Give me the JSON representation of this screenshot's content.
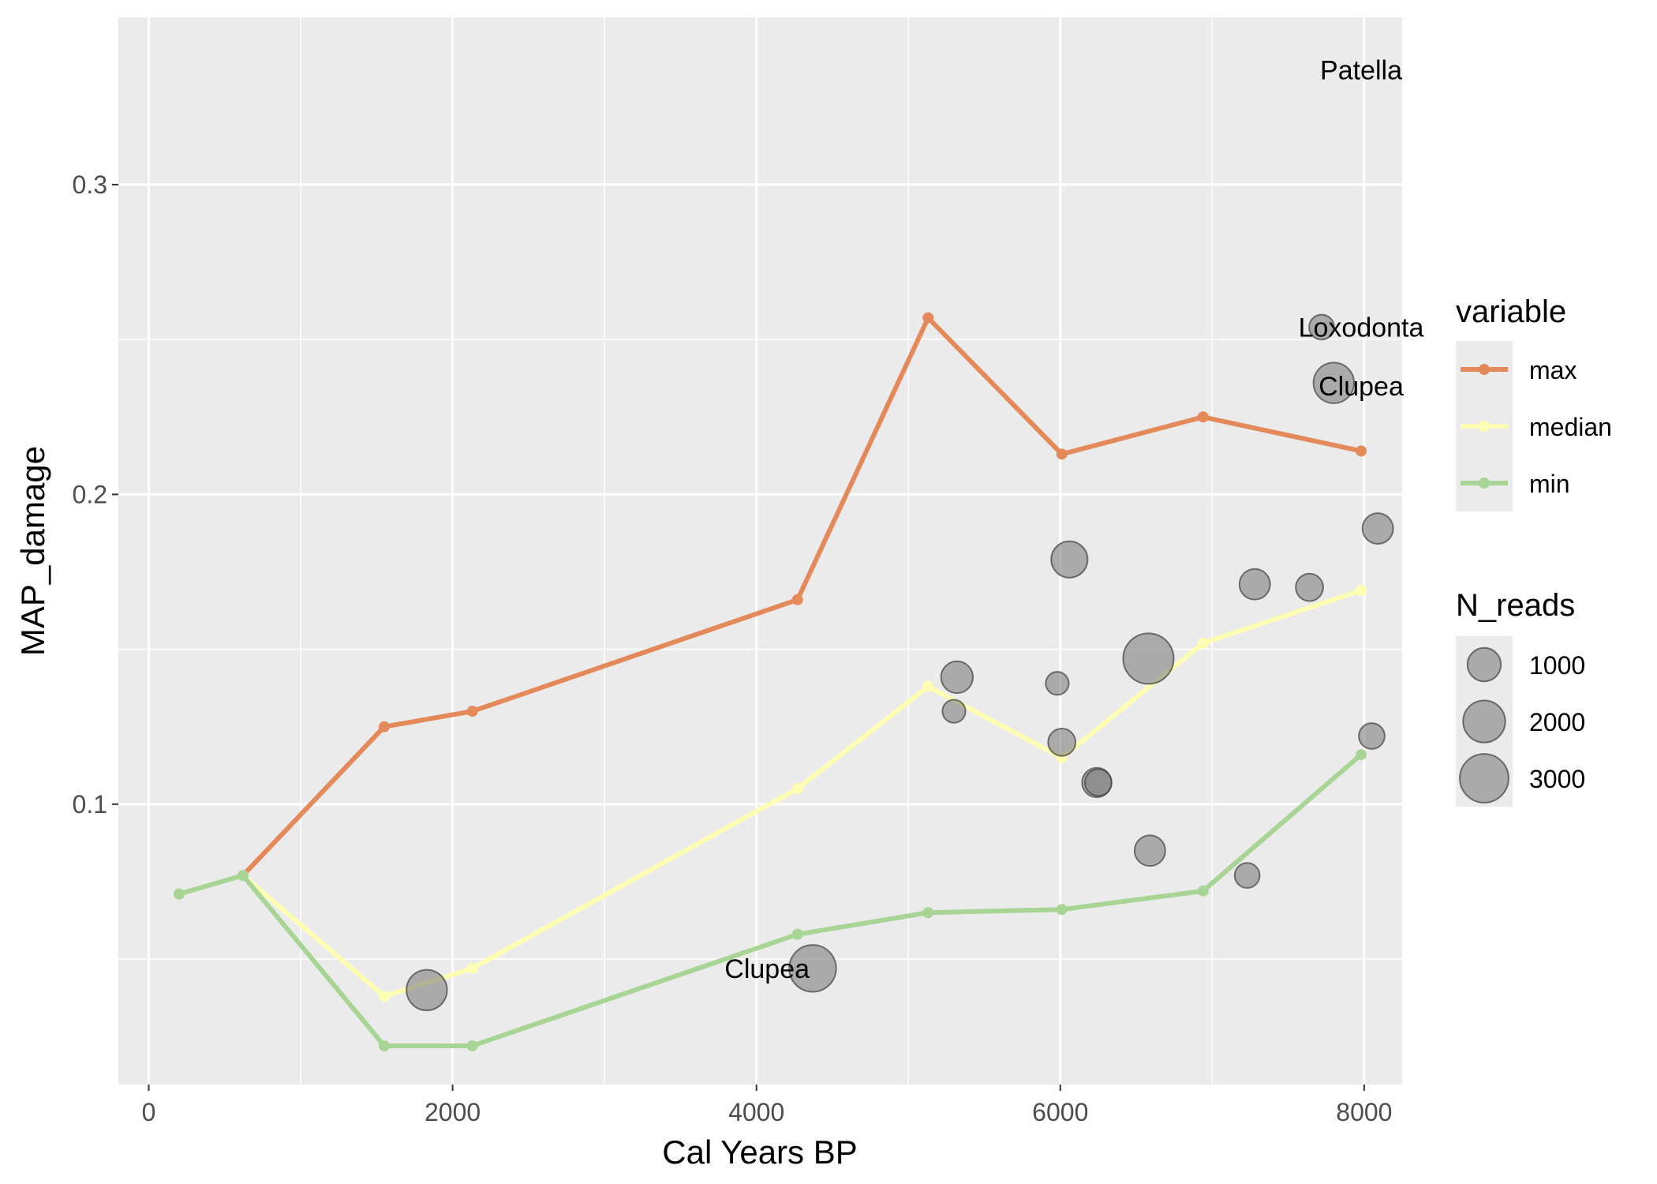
{
  "chart_data": {
    "type": "line",
    "xlabel": "Cal Years BP",
    "ylabel": "MAP_damage",
    "xlim": [
      -200,
      8250
    ],
    "ylim": [
      0.0095,
      0.354
    ],
    "x_ticks": [
      0,
      2000,
      4000,
      6000,
      8000
    ],
    "x_tick_labels": [
      "0",
      "2000",
      "4000",
      "6000",
      "8000"
    ],
    "y_ticks": [
      0.1,
      0.2,
      0.3
    ],
    "y_tick_labels": [
      "0.1",
      "0.2",
      "0.3"
    ],
    "grid": true,
    "legend_placement": "right",
    "colors": {
      "panel_background": "#ebebeb",
      "grid": "#ffffff",
      "max": "#e4895a",
      "median": "#ffffb3",
      "min": "#a8d595",
      "points": "#7f7f7f"
    },
    "legend_variable": {
      "title": "variable",
      "entries": [
        {
          "key": "max",
          "label": "max"
        },
        {
          "key": "median",
          "label": "median"
        },
        {
          "key": "min",
          "label": "min"
        }
      ]
    },
    "legend_size": {
      "title": "N_reads",
      "entries": [
        {
          "value": 1000,
          "label": "1000"
        },
        {
          "value": 2000,
          "label": "2000"
        },
        {
          "value": 3000,
          "label": "3000"
        }
      ]
    },
    "series": [
      {
        "name": "max",
        "x": [
          620,
          1550,
          2130,
          4270,
          5130,
          6010,
          6940,
          7980
        ],
        "y": [
          0.077,
          0.125,
          0.13,
          0.166,
          0.257,
          0.213,
          0.225,
          0.214
        ]
      },
      {
        "name": "median",
        "x": [
          620,
          1550,
          2130,
          4270,
          5130,
          6010,
          6940,
          7980
        ],
        "y": [
          0.077,
          0.038,
          0.047,
          0.105,
          0.138,
          0.115,
          0.152,
          0.169
        ]
      },
      {
        "name": "min",
        "x": [
          200,
          620,
          1550,
          2130,
          4270,
          5130,
          6010,
          6940,
          7980
        ],
        "y": [
          0.071,
          0.077,
          0.022,
          0.022,
          0.058,
          0.065,
          0.066,
          0.072,
          0.116
        ]
      }
    ],
    "points": [
      {
        "x": 1830,
        "y": 0.04,
        "n_reads": 1800
      },
      {
        "x": 4370,
        "y": 0.047,
        "n_reads": 2700
      },
      {
        "x": 5300,
        "y": 0.13,
        "n_reads": 250
      },
      {
        "x": 5320,
        "y": 0.141,
        "n_reads": 850
      },
      {
        "x": 5980,
        "y": 0.139,
        "n_reads": 250
      },
      {
        "x": 6010,
        "y": 0.12,
        "n_reads": 500
      },
      {
        "x": 6060,
        "y": 0.179,
        "n_reads": 1300
      },
      {
        "x": 6240,
        "y": 0.107,
        "n_reads": 650
      },
      {
        "x": 6250,
        "y": 0.107,
        "n_reads": 450
      },
      {
        "x": 6580,
        "y": 0.147,
        "n_reads": 3300
      },
      {
        "x": 6590,
        "y": 0.085,
        "n_reads": 750
      },
      {
        "x": 7230,
        "y": 0.077,
        "n_reads": 350
      },
      {
        "x": 7280,
        "y": 0.171,
        "n_reads": 750
      },
      {
        "x": 7640,
        "y": 0.17,
        "n_reads": 500
      },
      {
        "x": 7720,
        "y": 0.254,
        "n_reads": 350
      },
      {
        "x": 7800,
        "y": 0.236,
        "n_reads": 1800
      },
      {
        "x": 8050,
        "y": 0.122,
        "n_reads": 400
      },
      {
        "x": 8090,
        "y": 0.189,
        "n_reads": 750
      }
    ],
    "annotations": [
      {
        "text": "Patella",
        "x": 7980,
        "y": 0.337
      },
      {
        "text": "Loxodonta",
        "x": 7980,
        "y": 0.254
      },
      {
        "text": "Clupea",
        "x": 7980,
        "y": 0.235
      },
      {
        "text": "Clupea",
        "x": 4070,
        "y": 0.047
      }
    ]
  }
}
